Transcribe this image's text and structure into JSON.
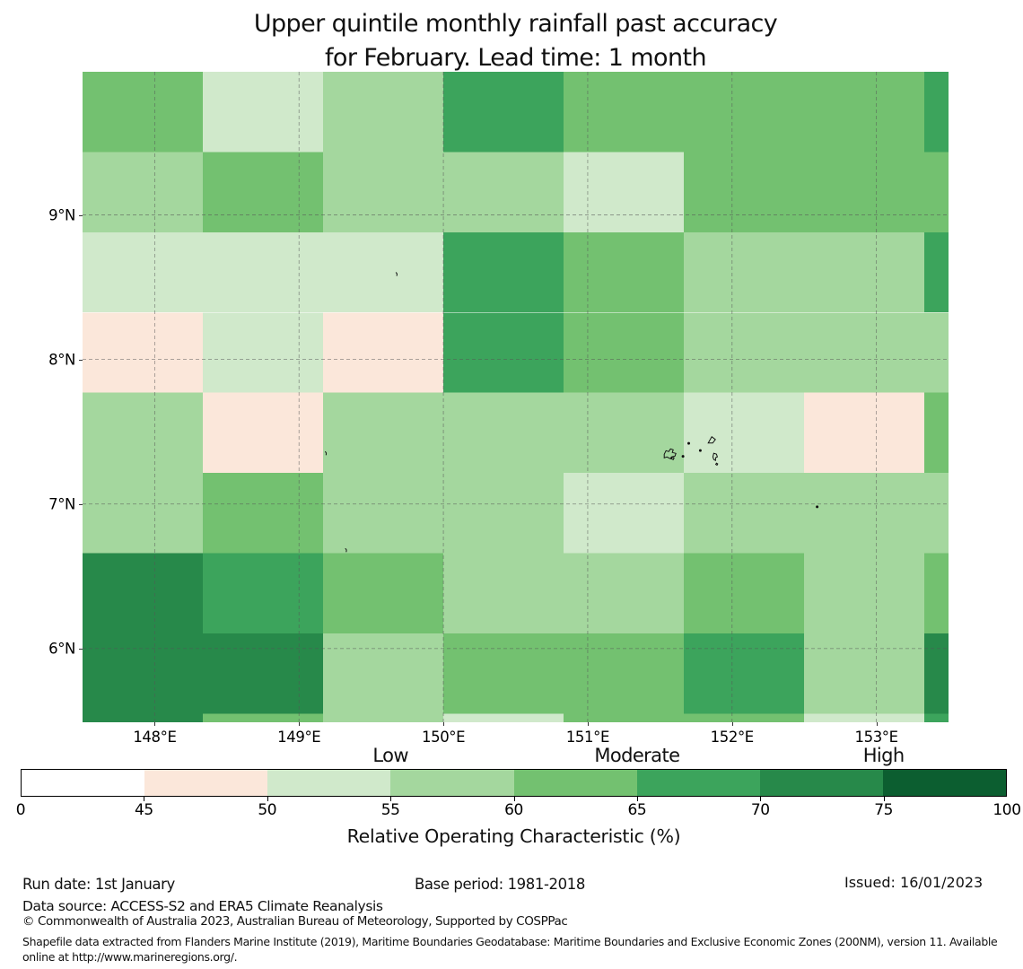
{
  "title": {
    "line1": "Upper quintile monthly rainfall past accuracy",
    "line2": "for February. Lead time: 1 month"
  },
  "chart_data": {
    "type": "heatmap",
    "title": "Upper quintile monthly rainfall past accuracy for February. Lead time: 1 month",
    "xlabel": "Relative Operating Characteristic (%)",
    "lon_range": [
      147.5,
      153.5
    ],
    "lat_top": 9.99,
    "lat_bottom": 5.49,
    "x_tick_lons": [
      148,
      149,
      150,
      151,
      152,
      153
    ],
    "x_tick_labels": [
      "148°E",
      "149°E",
      "150°E",
      "151°E",
      "152°E",
      "153°E"
    ],
    "y_tick_lats": [
      9,
      8,
      7,
      6
    ],
    "y_tick_labels": [
      "9°N",
      "8°N",
      "7°N",
      "6°N"
    ],
    "grid_on": true,
    "grid_col_edges_lon": [
      147.5,
      148.333,
      149.167,
      150.0,
      150.833,
      151.667,
      152.5,
      153.333,
      153.5
    ],
    "grid_row_edges_lat": [
      9.99,
      9.435,
      8.88,
      8.325,
      7.77,
      7.215,
      6.66,
      6.105,
      5.55,
      5.49
    ],
    "bins": [
      "0-45",
      "45-50",
      "50-55",
      "55-60",
      "60-65",
      "65-70",
      "70-75",
      "75-100"
    ],
    "bin_colors": [
      "#ffffff",
      "#fbe7da",
      "#d0e9cb",
      "#a4d79e",
      "#73c170",
      "#3ca45c",
      "#27894a",
      "#0c5e30"
    ],
    "cells_bins": [
      [
        "60-65",
        "50-55",
        "55-60",
        "65-70",
        "60-65",
        "60-65",
        "60-65",
        "65-70"
      ],
      [
        "55-60",
        "60-65",
        "55-60",
        "55-60",
        "50-55",
        "60-65",
        "60-65",
        "60-65"
      ],
      [
        "50-55",
        "50-55",
        "50-55",
        "65-70",
        "60-65",
        "55-60",
        "55-60",
        "65-70"
      ],
      [
        "45-50",
        "50-55",
        "45-50",
        "65-70",
        "60-65",
        "55-60",
        "55-60",
        "55-60"
      ],
      [
        "55-60",
        "45-50",
        "55-60",
        "55-60",
        "55-60",
        "50-55",
        "45-50",
        "60-65"
      ],
      [
        "55-60",
        "60-65",
        "55-60",
        "55-60",
        "50-55",
        "55-60",
        "55-60",
        "55-60"
      ],
      [
        "70-75",
        "65-70",
        "60-65",
        "55-60",
        "55-60",
        "60-65",
        "55-60",
        "60-65"
      ],
      [
        "70-75",
        "70-75",
        "55-60",
        "60-65",
        "60-65",
        "65-70",
        "55-60",
        "70-75"
      ],
      [
        "70-75",
        "60-65",
        "55-60",
        "50-55",
        "60-65",
        "60-65",
        "50-55",
        "65-70"
      ]
    ],
    "islands": [
      {
        "lon": 151.58,
        "lat": 7.35,
        "kind": "blob"
      },
      {
        "lon": 151.7,
        "lat": 7.42,
        "kind": "dot"
      },
      {
        "lon": 151.66,
        "lat": 7.33,
        "kind": "dot"
      },
      {
        "lon": 151.78,
        "lat": 7.37,
        "kind": "dot"
      },
      {
        "lon": 151.86,
        "lat": 7.44,
        "kind": "tri"
      },
      {
        "lon": 151.88,
        "lat": 7.32,
        "kind": "hook"
      },
      {
        "lon": 149.67,
        "lat": 8.59,
        "kind": "comma"
      },
      {
        "lon": 149.18,
        "lat": 7.35,
        "kind": "comma"
      },
      {
        "lon": 149.32,
        "lat": 6.68,
        "kind": "comma"
      },
      {
        "lon": 152.59,
        "lat": 6.98,
        "kind": "dot"
      }
    ],
    "colorbar": {
      "ticks": [
        0,
        45,
        50,
        55,
        60,
        65,
        70,
        75,
        100
      ],
      "tick_labels": [
        "0",
        "45",
        "50",
        "55",
        "60",
        "65",
        "70",
        "75",
        "100"
      ],
      "segment_colors": [
        "#ffffff",
        "#fbe7da",
        "#d0e9cb",
        "#a4d79e",
        "#73c170",
        "#3ca45c",
        "#27894a",
        "#0c5e30"
      ],
      "category_labels": [
        {
          "label": "Low",
          "tick_index": 3
        },
        {
          "label": "Moderate",
          "tick_index": 5
        },
        {
          "label": "High",
          "tick_index": 7
        }
      ],
      "xlabel": "Relative Operating Characteristic (%)",
      "position": "bottom"
    },
    "gridline_color": "#555555"
  },
  "footer": {
    "run_date": "Run date: 1st January",
    "base_period": "Base period: 1981-2018",
    "issued": "Issued: 16/01/2023",
    "data_source": "Data source: ACCESS-S2 and ERA5 Climate Reanalysis",
    "copyright": "© Commonwealth of Australia 2023, Australian Bureau of Meteorology, Supported by COSPPac",
    "shapefile_note": "Shapefile data extracted from Flanders Marine Institute (2019), Maritime Boundaries Geodatabase: Maritime Boundaries and Exclusive Economic Zones (200NM), version 11. Available online at http://www.marineregions.org/."
  }
}
